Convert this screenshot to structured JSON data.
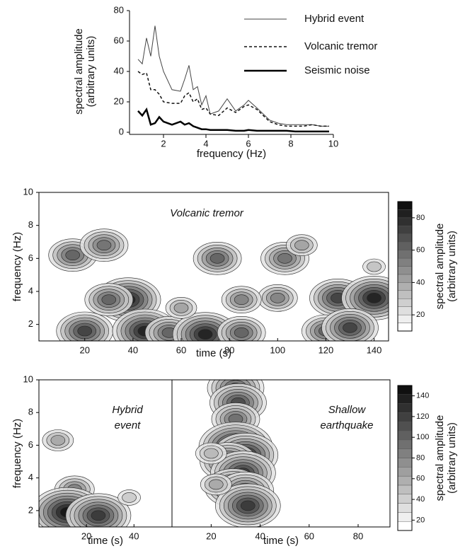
{
  "chart_data": [
    {
      "type": "line",
      "xlabel": "frequency (Hz)",
      "ylabel_lines": [
        "spectral amplitude",
        "(arbitrary units)"
      ],
      "xlim": [
        0.4,
        10
      ],
      "xticks": [
        2,
        4,
        6,
        8,
        10
      ],
      "ylim": [
        0,
        80
      ],
      "yticks": [
        0,
        20,
        40,
        60,
        80
      ],
      "x": [
        0.8,
        1,
        1.2,
        1.4,
        1.6,
        1.8,
        2,
        2.4,
        2.8,
        3,
        3.2,
        3.4,
        3.6,
        3.8,
        4,
        4.2,
        4.6,
        5,
        5.4,
        5.8,
        6,
        6.4,
        7,
        7.4,
        7.8,
        8.2,
        8.6,
        9,
        9.4,
        9.8
      ],
      "series": [
        {
          "name": "Hybrid event",
          "color": "#444444",
          "dashed": false,
          "line_width": 1,
          "values": [
            48,
            45,
            62,
            50,
            70,
            50,
            40,
            28,
            27,
            35,
            44,
            28,
            30,
            18,
            24,
            12,
            14,
            22,
            14,
            18,
            21,
            16,
            8,
            6,
            5,
            5,
            5,
            5,
            4,
            4
          ]
        },
        {
          "name": "Volcanic tremor",
          "color": "#111111",
          "dashed": true,
          "line_width": 1.5,
          "values": [
            40,
            38,
            39,
            28,
            28,
            25,
            20,
            19,
            19,
            24,
            26,
            20,
            22,
            15,
            16,
            12,
            11,
            16,
            13,
            17,
            18,
            15,
            7,
            5,
            4,
            4,
            4,
            5,
            4,
            4
          ]
        },
        {
          "name": "Seismic noise",
          "color": "#000000",
          "dashed": false,
          "line_width": 2.5,
          "values": [
            14,
            11,
            15,
            5,
            6,
            10,
            7,
            5,
            7,
            5,
            6,
            4,
            3,
            2,
            2,
            1.5,
            1.5,
            1.5,
            1,
            1,
            1.5,
            1,
            1,
            1,
            1,
            0.5,
            0.5,
            0.5,
            0.5,
            0.5
          ]
        }
      ]
    },
    {
      "type": "contour",
      "label_lines": [
        "Volcanic tremor"
      ],
      "xlabel": "time (s)",
      "ylabel": "frequency (Hz)",
      "xlim": [
        1,
        146
      ],
      "xticks": [
        20,
        40,
        60,
        80,
        100,
        120,
        140
      ],
      "ylim": [
        1,
        10
      ],
      "yticks": [
        2,
        4,
        6,
        8,
        10
      ],
      "clim": [
        10,
        90
      ],
      "cticks": [
        20,
        40,
        60,
        80
      ],
      "colorbar_label_lines": [
        "spectral amplitude",
        "(arbitrary units)"
      ],
      "blobs": [
        [
          15,
          6.2,
          60
        ],
        [
          28,
          6.8,
          55
        ],
        [
          38,
          3.5,
          80
        ],
        [
          30,
          3.5,
          60
        ],
        [
          20,
          1.6,
          70
        ],
        [
          45,
          1.6,
          80
        ],
        [
          55,
          1.5,
          60
        ],
        [
          70,
          1.4,
          80
        ],
        [
          85,
          1.5,
          60
        ],
        [
          75,
          6,
          60
        ],
        [
          103,
          6,
          55
        ],
        [
          125,
          3.6,
          70
        ],
        [
          140,
          3.6,
          80
        ],
        [
          120,
          1.6,
          60
        ],
        [
          130,
          1.8,
          70
        ],
        [
          100,
          3.6,
          50
        ],
        [
          60,
          3,
          40
        ],
        [
          85,
          3.5,
          50
        ],
        [
          110,
          6.8,
          40
        ],
        [
          140,
          5.5,
          30
        ]
      ]
    },
    {
      "type": "contour",
      "label_lines": [
        "Hybrid",
        "event"
      ],
      "xlabel": "time (s)",
      "ylabel": "frequency (Hz)",
      "xlim": [
        0,
        56
      ],
      "xticks": [
        20,
        40
      ],
      "ylim": [
        1,
        10
      ],
      "yticks": [
        2,
        4,
        6,
        8,
        10
      ],
      "clim": [
        10,
        150
      ],
      "cticks": [
        20,
        40,
        60,
        80,
        100,
        120,
        140
      ],
      "colorbar_label_lines": [
        "spectral amplitude",
        "(arbitrary units)"
      ],
      "blobs": [
        [
          8,
          6.3,
          60
        ],
        [
          15,
          3.3,
          80
        ],
        [
          12,
          1.9,
          140
        ],
        [
          25,
          1.7,
          120
        ],
        [
          38,
          2.8,
          40
        ]
      ]
    },
    {
      "type": "contour",
      "label_lines": [
        "Shallow",
        "earthquake"
      ],
      "xlabel": "time (s)",
      "xlim": [
        4,
        93
      ],
      "xticks": [
        20,
        40,
        60,
        80
      ],
      "ylim": [
        1,
        10
      ],
      "clim": [
        10,
        150
      ],
      "blobs": [
        [
          30,
          9.5,
          100
        ],
        [
          31,
          8.6,
          110
        ],
        [
          30,
          7.6,
          90
        ],
        [
          30,
          5.9,
          140
        ],
        [
          34,
          5.4,
          130
        ],
        [
          27,
          5,
          110
        ],
        [
          33,
          4.3,
          120
        ],
        [
          29,
          3.4,
          110
        ],
        [
          34,
          3.2,
          100
        ],
        [
          35,
          2.3,
          120
        ],
        [
          22,
          3.6,
          60
        ],
        [
          20,
          5.5,
          50
        ]
      ]
    }
  ]
}
